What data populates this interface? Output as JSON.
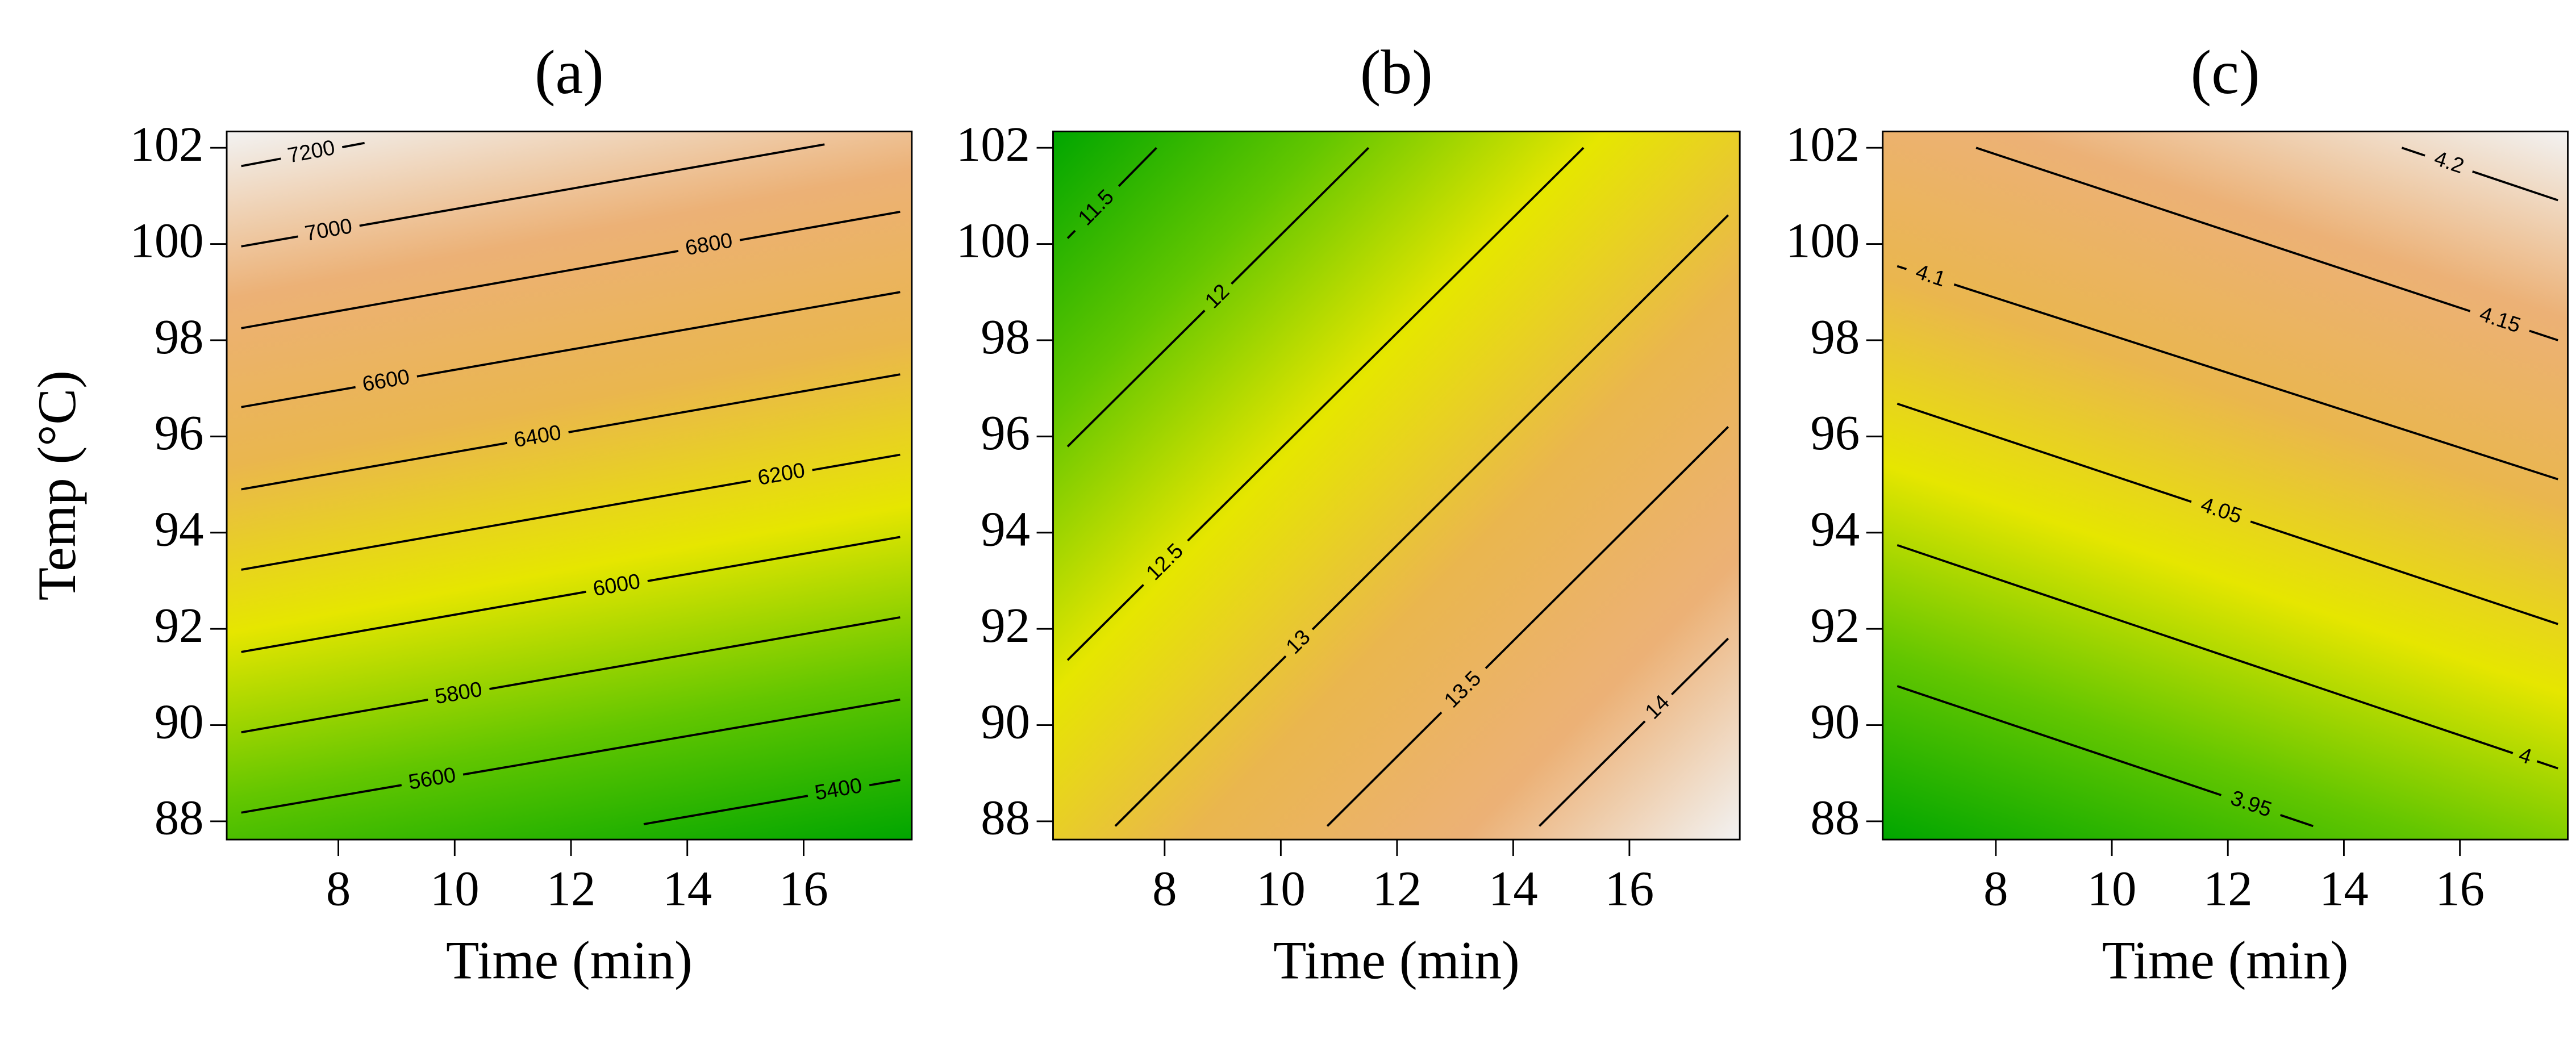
{
  "chart_data": [
    {
      "type": "contour",
      "title": "(a)",
      "x_label": "Time (min)",
      "y_label": "Temp (°C)",
      "xlim": [
        6.08,
        17.86
      ],
      "ylim": [
        87.62,
        102.34
      ],
      "xticks": [
        8,
        10,
        12,
        14,
        16
      ],
      "yticks": [
        88,
        90,
        92,
        94,
        96,
        98,
        100,
        102
      ],
      "colors": [
        "#00A600",
        "#63C600",
        "#E6E600",
        "#EAB64E",
        "#ECB176",
        "#F2F2F2"
      ],
      "line_color": "#000000",
      "contours": [
        {
          "level": 7200,
          "x": [
            6.33,
            8.45
          ],
          "y": [
            101.62,
            102.1
          ]
        },
        {
          "level": 7000,
          "x": [
            6.33,
            16.36
          ],
          "y": [
            99.95,
            102.07
          ]
        },
        {
          "level": 6800,
          "x": [
            6.33,
            17.66
          ],
          "y": [
            98.25,
            100.67
          ]
        },
        {
          "level": 6600,
          "x": [
            6.33,
            17.66
          ],
          "y": [
            96.61,
            99.0
          ]
        },
        {
          "level": 6400,
          "x": [
            6.33,
            17.66
          ],
          "y": [
            94.9,
            97.29
          ]
        },
        {
          "level": 6200,
          "x": [
            6.33,
            17.66
          ],
          "y": [
            93.23,
            95.62
          ]
        },
        {
          "level": 6000,
          "x": [
            6.33,
            17.66
          ],
          "y": [
            91.52,
            93.91
          ]
        },
        {
          "level": 5800,
          "x": [
            6.33,
            17.66
          ],
          "y": [
            89.85,
            92.24
          ]
        },
        {
          "level": 5600,
          "x": [
            6.33,
            17.66
          ],
          "y": [
            88.18,
            90.53
          ]
        },
        {
          "level": 5400,
          "x": [
            13.25,
            17.66
          ],
          "y": [
            87.94,
            88.86
          ]
        }
      ]
    },
    {
      "type": "contour",
      "title": "(b)",
      "x_label": "Time (min)",
      "xlim": [
        6.08,
        17.9
      ],
      "ylim": [
        87.62,
        102.34
      ],
      "xticks": [
        8,
        10,
        12,
        14,
        16
      ],
      "yticks": [
        88,
        90,
        92,
        94,
        96,
        98,
        100,
        102
      ],
      "colors": [
        "#00A600",
        "#63C600",
        "#E6E600",
        "#EAB64E",
        "#ECB176",
        "#F2F2F2"
      ],
      "line_color": "#000000",
      "contours": [
        {
          "level": 11.5,
          "x": [
            6.33,
            7.86
          ],
          "y": [
            100.12,
            102
          ]
        },
        {
          "level": 12,
          "x": [
            6.33,
            11.51
          ],
          "y": [
            95.79,
            102
          ]
        },
        {
          "level": 12.5,
          "x": [
            6.33,
            15.21
          ],
          "y": [
            91.35,
            102
          ]
        },
        {
          "level": 13,
          "x": [
            7.15,
            17.7
          ],
          "y": [
            87.9,
            100.6
          ]
        },
        {
          "level": 13.5,
          "x": [
            10.8,
            17.7
          ],
          "y": [
            87.9,
            96.2
          ]
        },
        {
          "level": 14,
          "x": [
            14.45,
            17.7
          ],
          "y": [
            87.9,
            91.8
          ]
        }
      ]
    },
    {
      "type": "contour",
      "title": "(c)",
      "x_label": "Time (min)",
      "xlim": [
        6.05,
        17.86
      ],
      "ylim": [
        87.62,
        102.34
      ],
      "xticks": [
        8,
        10,
        12,
        14,
        16
      ],
      "yticks": [
        88,
        90,
        92,
        94,
        96,
        98,
        100,
        102
      ],
      "colors": [
        "#00A600",
        "#63C600",
        "#E6E600",
        "#EAB64E",
        "#ECB176",
        "#F2F2F2"
      ],
      "line_color": "#000000",
      "contours": [
        {
          "level": 4.2,
          "x": [
            15.0,
            17.69
          ],
          "y": [
            102,
            100.91
          ]
        },
        {
          "level": 4.15,
          "x": [
            7.66,
            17.69
          ],
          "y": [
            102,
            98.0
          ]
        },
        {
          "level": 4.1,
          "x": [
            6.3,
            17.69
          ],
          "y": [
            99.54,
            95.11
          ]
        },
        {
          "level": 4.05,
          "x": [
            6.3,
            17.69
          ],
          "y": [
            96.68,
            92.1
          ]
        },
        {
          "level": 4,
          "x": [
            6.3,
            17.69
          ],
          "y": [
            93.74,
            89.1
          ]
        },
        {
          "level": 3.95,
          "x": [
            6.3,
            13.47
          ],
          "y": [
            90.81,
            87.9
          ]
        }
      ]
    }
  ]
}
